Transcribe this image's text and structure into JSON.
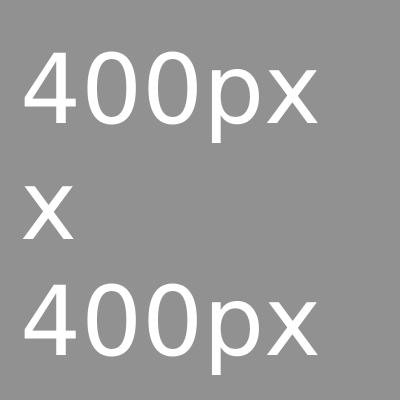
{
  "placeholder": {
    "lines": [
      "400px",
      "x",
      "400px"
    ]
  },
  "colors": {
    "background": "#919191",
    "text": "#ffffff"
  }
}
